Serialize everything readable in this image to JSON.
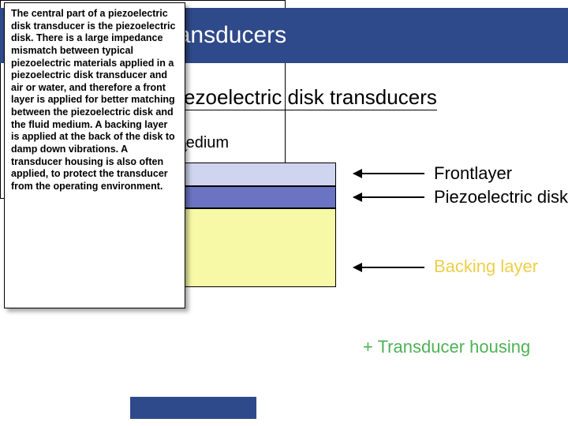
{
  "title": "Piezoelectric transducers",
  "subtitle": "Ultrasonic piezoelectric disk transducers",
  "fluid_arrow": "↓",
  "fluid_label": "Fluid medium",
  "labels": {
    "front": "Frontlayer",
    "piezo": "Piezoelectric disk",
    "backing": "Backing layer",
    "housing": "+ Transducer housing"
  },
  "tooltip": "The central part of a piezoelectric disk transducer is the piezoelectric disk. There is a large impedance mismatch between typical piezoelectric materials applied in a piezoelectric disk transducer and air or water, and therefore a front layer is applied for better matching between the piezoelectric disk and the fluid medium. A backing layer is applied at the back of the disk to damp down vibrations. A transducer housing is also often applied, to protect the transducer from the operating environment.",
  "colors": {
    "title_bg": "#2f4a8a",
    "frontlayer": "#cfd4ef",
    "piezo": "#6a74c2",
    "backing": "#f7f9a6",
    "backing_text": "#eece49",
    "housing_text": "#4eb256"
  }
}
